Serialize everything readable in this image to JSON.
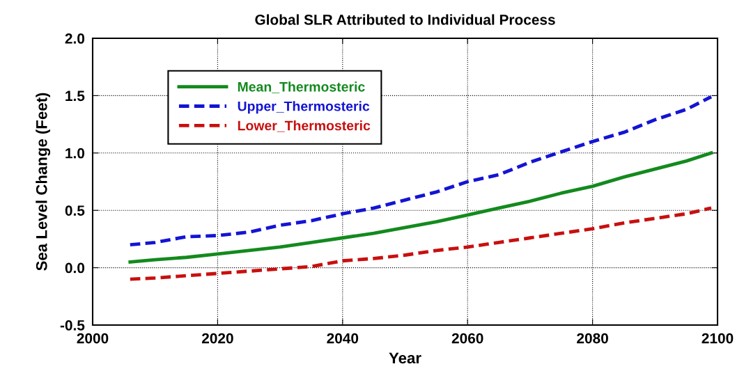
{
  "chart_data": {
    "type": "line",
    "title": "Global SLR Attributed to Individual Process",
    "xlabel": "Year",
    "ylabel": "Sea Level Change (Feet)",
    "x": [
      2006,
      2010,
      2015,
      2020,
      2025,
      2030,
      2035,
      2040,
      2045,
      2050,
      2055,
      2060,
      2065,
      2070,
      2075,
      2080,
      2085,
      2090,
      2095,
      2099
    ],
    "series": [
      {
        "name": "Mean_Thermosteric",
        "color": "#138a1e",
        "line_style": "solid",
        "values": [
          0.05,
          0.07,
          0.09,
          0.12,
          0.15,
          0.18,
          0.22,
          0.26,
          0.3,
          0.35,
          0.4,
          0.46,
          0.52,
          0.58,
          0.65,
          0.71,
          0.79,
          0.86,
          0.93,
          1.0
        ]
      },
      {
        "name": "Upper_Thermosteric",
        "color": "#1414d4",
        "line_style": "dashed",
        "values": [
          0.2,
          0.22,
          0.27,
          0.28,
          0.31,
          0.37,
          0.41,
          0.47,
          0.52,
          0.59,
          0.66,
          0.75,
          0.81,
          0.92,
          1.01,
          1.1,
          1.18,
          1.29,
          1.38,
          1.49
        ]
      },
      {
        "name": "Lower_Thermosteric",
        "color": "#c8100f",
        "line_style": "dashed",
        "values": [
          -0.1,
          -0.09,
          -0.07,
          -0.05,
          -0.03,
          -0.01,
          0.01,
          0.06,
          0.08,
          0.11,
          0.15,
          0.18,
          0.22,
          0.26,
          0.3,
          0.34,
          0.39,
          0.43,
          0.47,
          0.52
        ]
      }
    ],
    "xlim": [
      2000,
      2100
    ],
    "xticks": [
      2000,
      2020,
      2040,
      2060,
      2080,
      2100
    ],
    "ylim": [
      -0.5,
      2.0
    ],
    "yticks": [
      {
        "value": -0.5,
        "label": "-0.5"
      },
      {
        "value": 0,
        "label": "0.0"
      },
      {
        "value": 0.5,
        "label": "0.5"
      },
      {
        "value": 1.0,
        "label": "1.0"
      },
      {
        "value": 1.5,
        "label": "1.5"
      },
      {
        "value": 2.0,
        "label": "2.0"
      }
    ],
    "grid": true,
    "legend": "top left"
  }
}
